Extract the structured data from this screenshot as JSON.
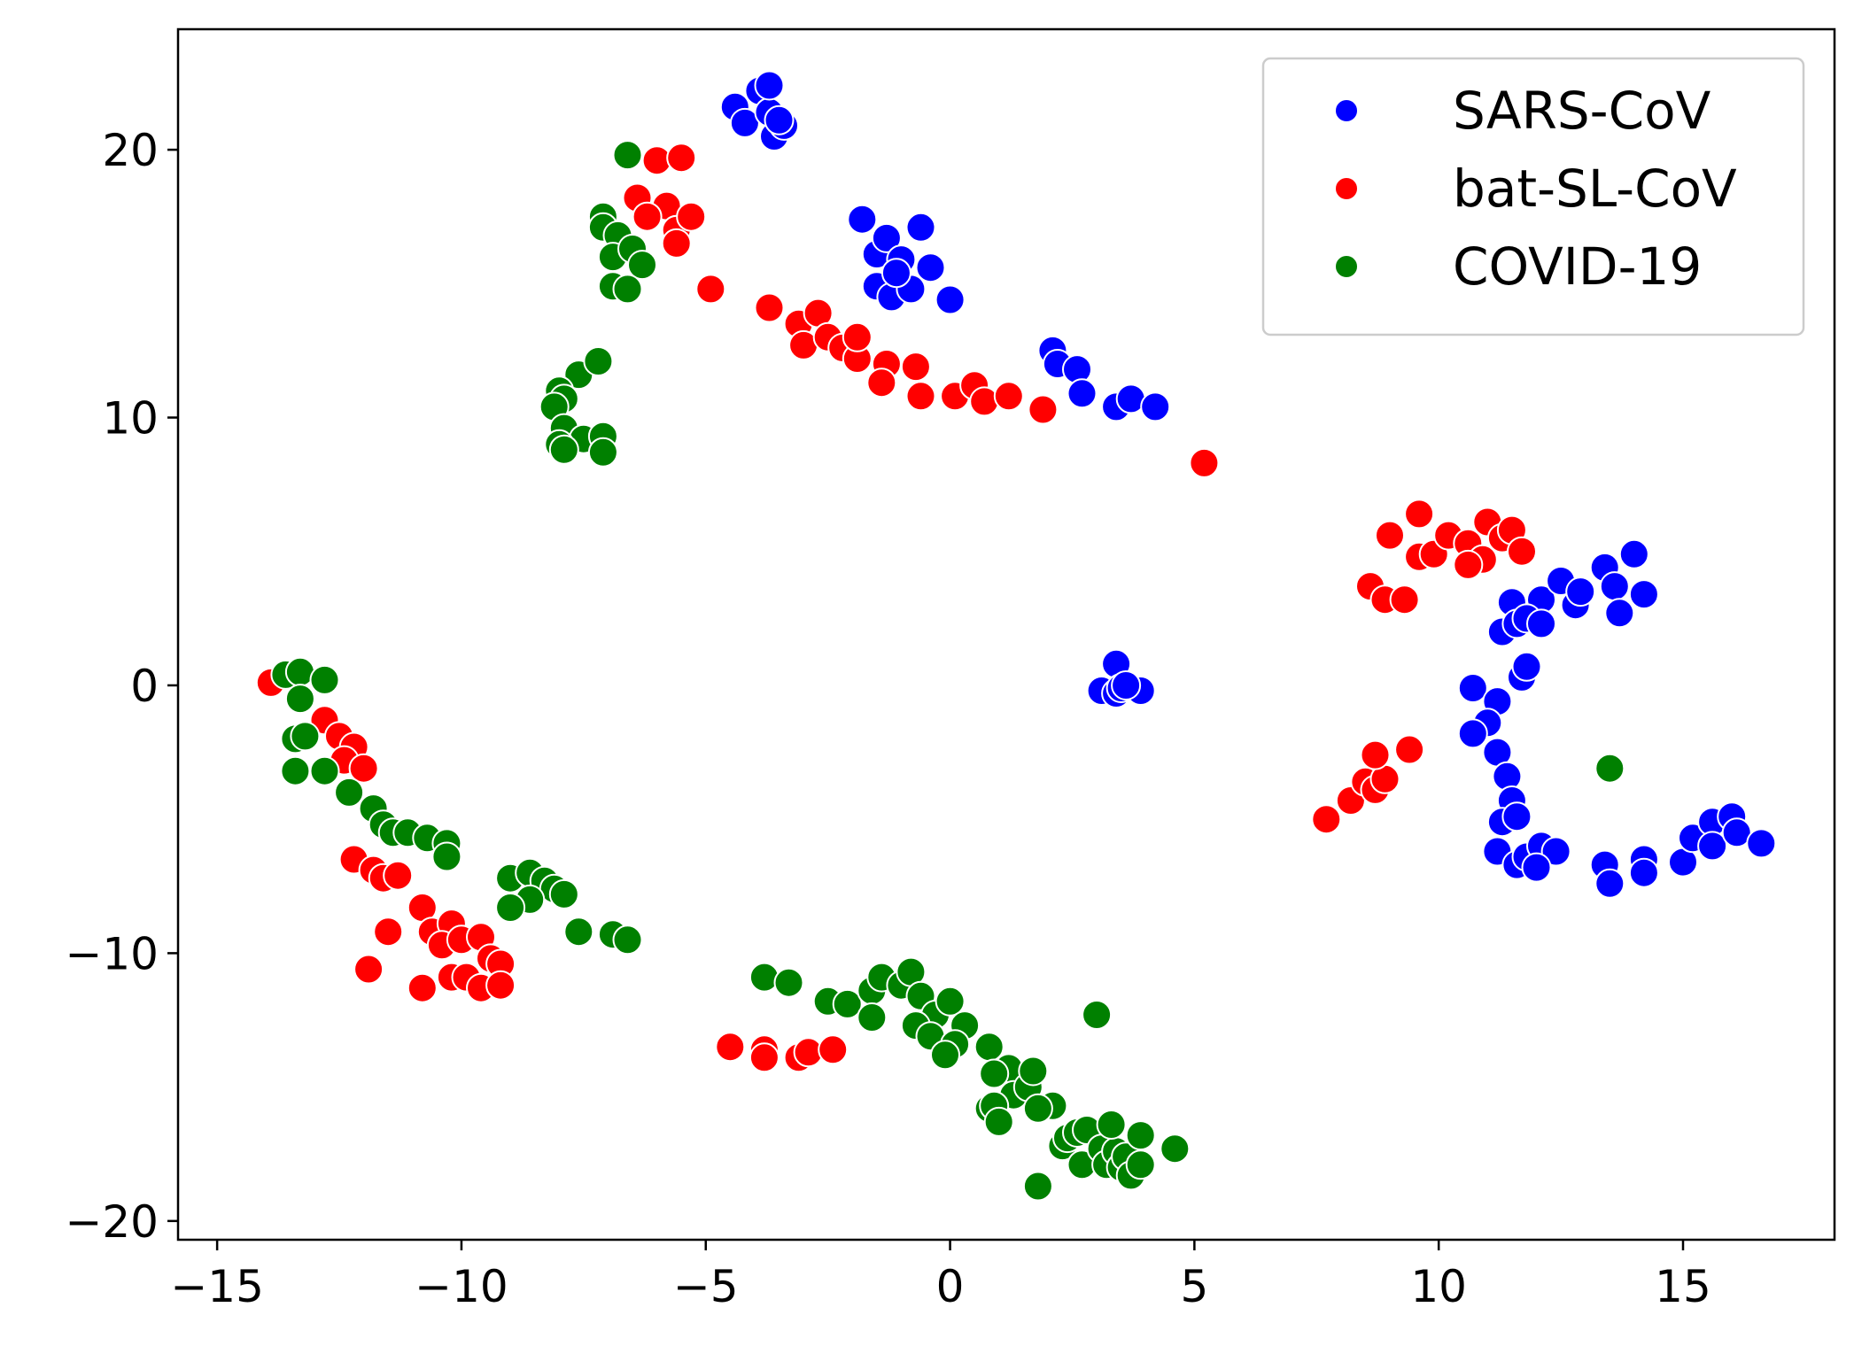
{
  "chart_data": {
    "type": "scatter",
    "title": "",
    "xlabel": "",
    "ylabel": "",
    "xlim": [
      -15.8,
      18.1
    ],
    "ylim": [
      -20.7,
      24.5
    ],
    "xticks": [
      -15,
      -10,
      -5,
      0,
      5,
      10,
      15
    ],
    "yticks": [
      -20,
      -10,
      0,
      10,
      20
    ],
    "xtick_labels": [
      "−15",
      "−10",
      "−5",
      "0",
      "5",
      "10",
      "15"
    ],
    "ytick_labels": [
      "−20",
      "−10",
      "0",
      "10",
      "20"
    ],
    "grid": false,
    "legend_position": "top-right",
    "series": [
      {
        "name": "SARS-CoV",
        "color": "#0000ff",
        "points": [
          [
            -4.4,
            21.6
          ],
          [
            -4.2,
            21.0
          ],
          [
            -3.9,
            22.2
          ],
          [
            -3.7,
            21.4
          ],
          [
            -3.6,
            20.5
          ],
          [
            -3.4,
            20.9
          ],
          [
            -3.7,
            22.4
          ],
          [
            -3.5,
            21.1
          ],
          [
            -1.8,
            17.4
          ],
          [
            -1.5,
            16.1
          ],
          [
            -1.3,
            16.7
          ],
          [
            -1.5,
            14.9
          ],
          [
            -1.2,
            14.5
          ],
          [
            -1.0,
            15.9
          ],
          [
            -0.8,
            14.8
          ],
          [
            -0.6,
            17.1
          ],
          [
            -0.4,
            15.6
          ],
          [
            0.0,
            14.4
          ],
          [
            -1.1,
            15.4
          ],
          [
            2.1,
            12.5
          ],
          [
            2.2,
            12.0
          ],
          [
            2.6,
            11.8
          ],
          [
            2.7,
            10.9
          ],
          [
            3.4,
            10.4
          ],
          [
            3.7,
            10.7
          ],
          [
            4.2,
            10.4
          ],
          [
            3.1,
            -0.2
          ],
          [
            3.4,
            0.8
          ],
          [
            3.4,
            -0.3
          ],
          [
            3.5,
            -0.1
          ],
          [
            3.9,
            -0.2
          ],
          [
            3.6,
            0.0
          ],
          [
            12.1,
            3.2
          ],
          [
            12.5,
            3.9
          ],
          [
            12.8,
            3.0
          ],
          [
            12.9,
            3.5
          ],
          [
            13.4,
            4.4
          ],
          [
            13.6,
            3.7
          ],
          [
            13.7,
            2.7
          ],
          [
            14.0,
            4.9
          ],
          [
            14.2,
            3.4
          ],
          [
            11.5,
            3.1
          ],
          [
            11.3,
            2.0
          ],
          [
            11.6,
            2.3
          ],
          [
            11.8,
            2.5
          ],
          [
            12.1,
            2.3
          ],
          [
            11.7,
            0.3
          ],
          [
            11.8,
            0.7
          ],
          [
            10.7,
            -0.1
          ],
          [
            11.2,
            -0.6
          ],
          [
            11.0,
            -1.4
          ],
          [
            10.7,
            -1.8
          ],
          [
            11.2,
            -2.5
          ],
          [
            11.4,
            -3.4
          ],
          [
            11.5,
            -4.3
          ],
          [
            11.3,
            -5.1
          ],
          [
            11.6,
            -4.9
          ],
          [
            11.2,
            -6.2
          ],
          [
            11.6,
            -6.7
          ],
          [
            11.8,
            -6.4
          ],
          [
            12.1,
            -6.0
          ],
          [
            12.4,
            -6.2
          ],
          [
            12.0,
            -6.8
          ],
          [
            13.4,
            -6.7
          ],
          [
            13.5,
            -7.4
          ],
          [
            14.2,
            -6.5
          ],
          [
            14.2,
            -7.0
          ],
          [
            15.0,
            -6.6
          ],
          [
            15.2,
            -5.7
          ],
          [
            15.6,
            -5.1
          ],
          [
            15.6,
            -6.0
          ],
          [
            16.0,
            -4.9
          ],
          [
            16.1,
            -5.5
          ],
          [
            16.6,
            -5.9
          ]
        ]
      },
      {
        "name": "bat-SL-CoV",
        "color": "#ff0000",
        "points": [
          [
            -6.4,
            18.2
          ],
          [
            -6.0,
            19.6
          ],
          [
            -5.5,
            19.7
          ],
          [
            -5.8,
            17.9
          ],
          [
            -6.2,
            17.5
          ],
          [
            -5.6,
            17.0
          ],
          [
            -5.3,
            17.5
          ],
          [
            -5.6,
            16.5
          ],
          [
            -4.9,
            14.8
          ],
          [
            -3.7,
            14.1
          ],
          [
            -3.1,
            13.5
          ],
          [
            -3.0,
            12.7
          ],
          [
            -2.7,
            13.9
          ],
          [
            -2.5,
            13.0
          ],
          [
            -2.2,
            12.6
          ],
          [
            -1.9,
            12.2
          ],
          [
            -1.9,
            13.0
          ],
          [
            -1.3,
            12.0
          ],
          [
            -1.4,
            11.3
          ],
          [
            -0.7,
            11.9
          ],
          [
            -0.6,
            10.8
          ],
          [
            0.1,
            10.8
          ],
          [
            0.5,
            11.2
          ],
          [
            0.7,
            10.6
          ],
          [
            1.2,
            10.8
          ],
          [
            1.9,
            10.3
          ],
          [
            5.2,
            8.3
          ],
          [
            8.6,
            3.7
          ],
          [
            8.9,
            3.2
          ],
          [
            9.3,
            3.2
          ],
          [
            9.0,
            5.6
          ],
          [
            9.6,
            6.4
          ],
          [
            9.6,
            4.8
          ],
          [
            9.9,
            4.9
          ],
          [
            10.2,
            5.6
          ],
          [
            10.6,
            5.3
          ],
          [
            10.9,
            4.7
          ],
          [
            10.6,
            4.5
          ],
          [
            11.0,
            6.1
          ],
          [
            11.3,
            5.5
          ],
          [
            11.5,
            5.8
          ],
          [
            11.7,
            5.0
          ],
          [
            7.7,
            -5.0
          ],
          [
            8.2,
            -4.3
          ],
          [
            8.5,
            -3.6
          ],
          [
            8.7,
            -3.9
          ],
          [
            8.9,
            -3.5
          ],
          [
            8.7,
            -2.6
          ],
          [
            9.4,
            -2.4
          ],
          [
            -13.9,
            0.1
          ],
          [
            -12.8,
            -1.3
          ],
          [
            -12.5,
            -1.9
          ],
          [
            -12.2,
            -2.3
          ],
          [
            -12.4,
            -2.8
          ],
          [
            -12.0,
            -3.1
          ],
          [
            -12.2,
            -6.5
          ],
          [
            -11.8,
            -6.9
          ],
          [
            -11.6,
            -7.2
          ],
          [
            -11.3,
            -7.1
          ],
          [
            -11.5,
            -9.2
          ],
          [
            -10.8,
            -8.3
          ],
          [
            -10.6,
            -9.2
          ],
          [
            -10.2,
            -8.9
          ],
          [
            -10.4,
            -9.7
          ],
          [
            -10.0,
            -9.5
          ],
          [
            -9.6,
            -9.4
          ],
          [
            -9.4,
            -10.2
          ],
          [
            -9.2,
            -10.4
          ],
          [
            -11.9,
            -10.6
          ],
          [
            -10.8,
            -11.3
          ],
          [
            -10.2,
            -10.9
          ],
          [
            -9.9,
            -10.9
          ],
          [
            -9.6,
            -11.3
          ],
          [
            -9.2,
            -11.2
          ],
          [
            -4.5,
            -13.5
          ],
          [
            -3.8,
            -13.6
          ],
          [
            -3.8,
            -13.9
          ],
          [
            -3.1,
            -13.9
          ],
          [
            -2.9,
            -13.7
          ],
          [
            -2.4,
            -13.6
          ]
        ]
      },
      {
        "name": "COVID-19",
        "color": "#008000",
        "points": [
          [
            -6.6,
            19.8
          ],
          [
            -7.1,
            17.5
          ],
          [
            -7.1,
            17.1
          ],
          [
            -6.8,
            16.8
          ],
          [
            -6.9,
            16.0
          ],
          [
            -6.5,
            16.3
          ],
          [
            -6.3,
            15.7
          ],
          [
            -6.9,
            14.9
          ],
          [
            -6.6,
            14.8
          ],
          [
            -7.6,
            11.6
          ],
          [
            -7.2,
            12.1
          ],
          [
            -8.0,
            11.0
          ],
          [
            -7.9,
            10.7
          ],
          [
            -8.1,
            10.4
          ],
          [
            -7.9,
            9.6
          ],
          [
            -7.5,
            9.2
          ],
          [
            -7.1,
            9.3
          ],
          [
            -7.1,
            8.7
          ],
          [
            -8.0,
            9.0
          ],
          [
            -7.9,
            8.8
          ],
          [
            -13.6,
            0.4
          ],
          [
            -13.3,
            0.5
          ],
          [
            -12.8,
            0.2
          ],
          [
            -13.3,
            -0.5
          ],
          [
            -13.4,
            -2.0
          ],
          [
            -13.2,
            -1.9
          ],
          [
            -13.4,
            -3.2
          ],
          [
            -12.8,
            -3.2
          ],
          [
            -12.3,
            -4.0
          ],
          [
            -11.8,
            -4.6
          ],
          [
            -11.6,
            -5.2
          ],
          [
            -11.4,
            -5.5
          ],
          [
            -11.1,
            -5.5
          ],
          [
            -10.7,
            -5.7
          ],
          [
            -10.3,
            -5.9
          ],
          [
            -10.3,
            -6.4
          ],
          [
            -9.0,
            -7.2
          ],
          [
            -8.6,
            -7.0
          ],
          [
            -8.3,
            -7.3
          ],
          [
            -8.1,
            -7.6
          ],
          [
            -7.9,
            -7.8
          ],
          [
            -8.6,
            -8.0
          ],
          [
            -9.0,
            -8.3
          ],
          [
            -7.6,
            -9.2
          ],
          [
            -6.9,
            -9.3
          ],
          [
            -6.6,
            -9.5
          ],
          [
            -3.8,
            -10.9
          ],
          [
            -3.3,
            -11.1
          ],
          [
            -2.5,
            -11.8
          ],
          [
            -2.1,
            -11.9
          ],
          [
            -1.6,
            -11.4
          ],
          [
            -1.4,
            -10.9
          ],
          [
            -1.6,
            -12.4
          ],
          [
            -1.0,
            -11.2
          ],
          [
            -0.8,
            -10.7
          ],
          [
            -0.6,
            -11.6
          ],
          [
            -0.3,
            -12.3
          ],
          [
            -0.7,
            -12.7
          ],
          [
            -0.4,
            -13.1
          ],
          [
            0.0,
            -11.8
          ],
          [
            0.3,
            -12.7
          ],
          [
            0.1,
            -13.4
          ],
          [
            -0.1,
            -13.8
          ],
          [
            0.8,
            -13.5
          ],
          [
            1.2,
            -14.3
          ],
          [
            0.9,
            -14.5
          ],
          [
            1.3,
            -15.3
          ],
          [
            1.6,
            -15.0
          ],
          [
            1.7,
            -14.4
          ],
          [
            2.1,
            -15.7
          ],
          [
            1.8,
            -15.8
          ],
          [
            0.8,
            -15.8
          ],
          [
            0.9,
            -15.7
          ],
          [
            1.0,
            -16.3
          ],
          [
            2.3,
            -17.2
          ],
          [
            2.4,
            -16.9
          ],
          [
            2.7,
            -17.9
          ],
          [
            2.6,
            -16.7
          ],
          [
            2.8,
            -16.6
          ],
          [
            3.1,
            -17.3
          ],
          [
            3.2,
            -17.9
          ],
          [
            3.4,
            -17.4
          ],
          [
            3.3,
            -16.4
          ],
          [
            3.5,
            -18.0
          ],
          [
            3.6,
            -17.6
          ],
          [
            3.7,
            -18.3
          ],
          [
            3.9,
            -17.9
          ],
          [
            3.9,
            -16.8
          ],
          [
            4.6,
            -17.3
          ],
          [
            1.8,
            -18.7
          ],
          [
            3.0,
            -12.3
          ],
          [
            13.5,
            -3.1
          ]
        ]
      }
    ]
  }
}
